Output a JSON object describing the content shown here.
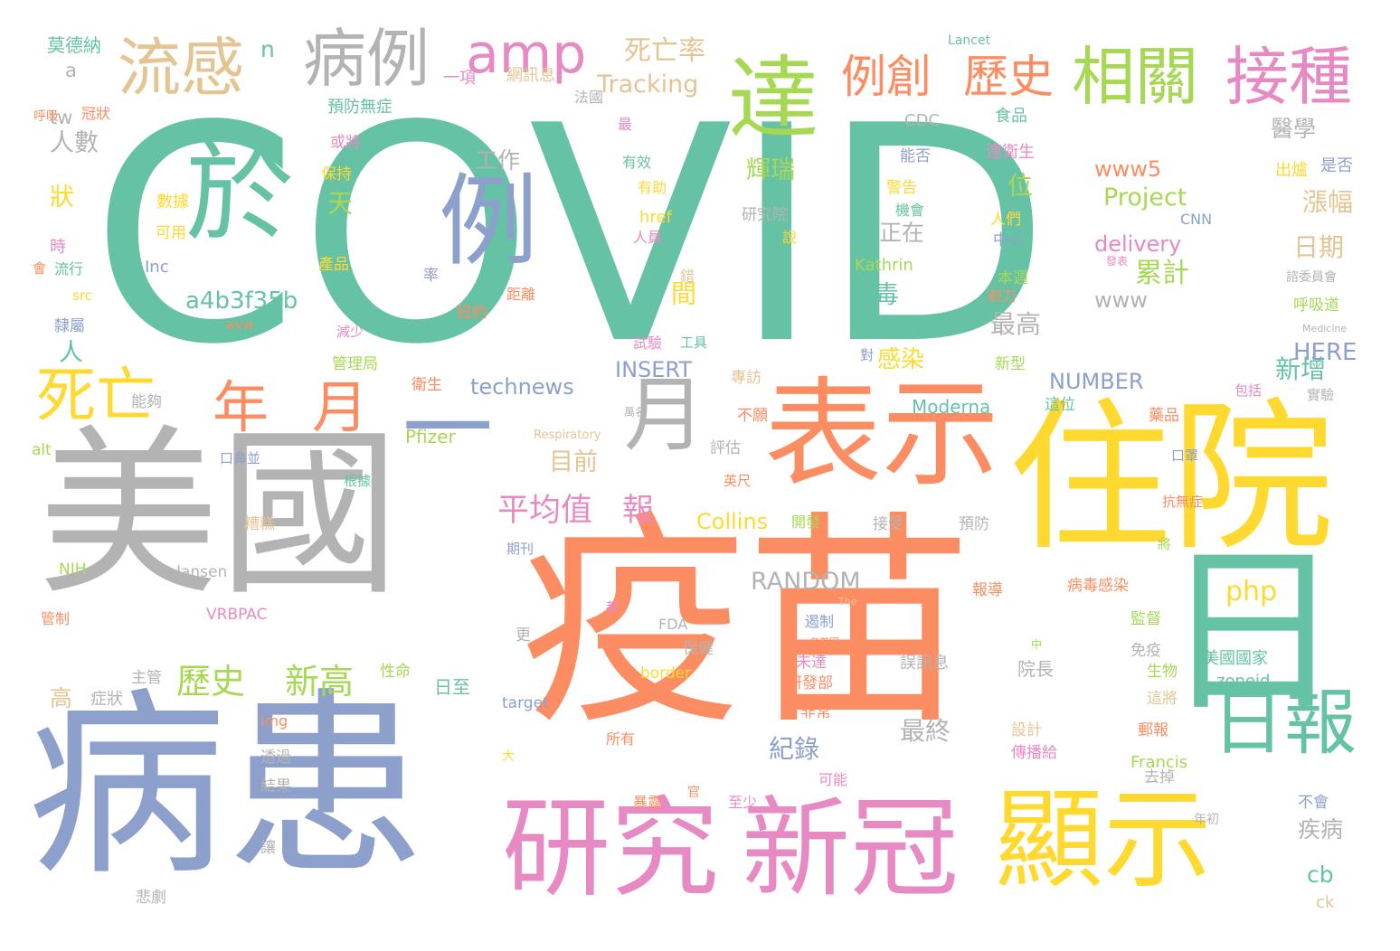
{
  "palette": {
    "teal": "#66c2a5",
    "orange": "#fc8d62",
    "blue": "#8da0cb",
    "pink": "#e78ac3",
    "green": "#a6d854",
    "yellow": "#ffd92f",
    "tan": "#e5c494",
    "gray": "#b3b3b3"
  },
  "words": [
    {
      "t": "COVID",
      "c": "teal"
    },
    {
      "t": "疫苗",
      "c": "orange"
    },
    {
      "t": "美國",
      "c": "gray"
    },
    {
      "t": "病患",
      "c": "blue"
    },
    {
      "t": "住院",
      "c": "yellow"
    },
    {
      "t": "表示",
      "c": "orange"
    },
    {
      "t": "研究",
      "c": "pink"
    },
    {
      "t": "新冠",
      "c": "pink"
    },
    {
      "t": "顯示",
      "c": "yellow"
    },
    {
      "t": "日",
      "c": "teal"
    },
    {
      "t": "於",
      "c": "teal"
    },
    {
      "t": "例",
      "c": "blue"
    },
    {
      "t": "達",
      "c": "green"
    },
    {
      "t": "一",
      "c": "blue"
    },
    {
      "t": "月",
      "c": "gray"
    },
    {
      "t": "日報",
      "c": "teal"
    },
    {
      "t": "病例",
      "c": "gray"
    },
    {
      "t": "流感",
      "c": "tan"
    },
    {
      "t": "amp",
      "c": "pink"
    },
    {
      "t": "相關",
      "c": "green"
    },
    {
      "t": "接種",
      "c": "pink"
    },
    {
      "t": "例創",
      "c": "orange"
    },
    {
      "t": "歷史",
      "c": "orange"
    },
    {
      "t": "死亡",
      "c": "yellow"
    },
    {
      "t": "年",
      "c": "orange"
    },
    {
      "t": "月",
      "c": "orange"
    },
    {
      "t": "死亡率",
      "c": "tan"
    },
    {
      "t": "Tracking",
      "c": "tan"
    },
    {
      "t": "平均值",
      "c": "pink"
    },
    {
      "t": "報",
      "c": "pink"
    },
    {
      "t": "歷史",
      "c": "green"
    },
    {
      "t": "新高",
      "c": "green"
    },
    {
      "t": "a4b3f35b",
      "c": "teal"
    },
    {
      "t": "Project",
      "c": "green"
    },
    {
      "t": "delivery",
      "c": "pink"
    },
    {
      "t": "www5",
      "c": "orange"
    },
    {
      "t": "technews",
      "c": "blue"
    },
    {
      "t": "INSERT",
      "c": "blue"
    },
    {
      "t": "NUMBER",
      "c": "blue"
    },
    {
      "t": "RANDOM",
      "c": "gray"
    },
    {
      "t": "Collins",
      "c": "yellow"
    },
    {
      "t": "php",
      "c": "yellow"
    },
    {
      "t": "輝瑞",
      "c": "green"
    },
    {
      "t": "累計",
      "c": "green"
    },
    {
      "t": "日期",
      "c": "tan"
    },
    {
      "t": "漲幅",
      "c": "tan"
    },
    {
      "t": "醫學",
      "c": "gray"
    },
    {
      "t": "新增",
      "c": "teal"
    },
    {
      "t": "HERE",
      "c": "blue"
    },
    {
      "t": "www",
      "c": "gray"
    },
    {
      "t": "最高",
      "c": "gray"
    },
    {
      "t": "病毒",
      "c": "teal"
    },
    {
      "t": "感染",
      "c": "yellow"
    },
    {
      "t": "正在",
      "c": "gray"
    },
    {
      "t": "位",
      "c": "green"
    },
    {
      "t": "天",
      "c": "green"
    },
    {
      "t": "間",
      "c": "yellow"
    },
    {
      "t": "目前",
      "c": "tan"
    },
    {
      "t": "紀錄",
      "c": "blue"
    },
    {
      "t": "Moderna",
      "c": "teal"
    },
    {
      "t": "Pfizer",
      "c": "green"
    },
    {
      "t": "最終",
      "c": "gray"
    },
    {
      "t": "誤訊息",
      "c": "gray"
    },
    {
      "t": "院長",
      "c": "gray"
    },
    {
      "t": "疾病",
      "c": "gray"
    },
    {
      "t": "cb",
      "c": "teal"
    },
    {
      "t": "ck",
      "c": "tan"
    },
    {
      "t": "Francis",
      "c": "green"
    },
    {
      "t": "zoneid",
      "c": "teal"
    },
    {
      "t": "美國國家",
      "c": "teal"
    },
    {
      "t": "人數",
      "c": "gray"
    },
    {
      "t": "狀",
      "c": "yellow"
    },
    {
      "t": "tw",
      "c": "gray"
    },
    {
      "t": "a",
      "c": "gray"
    },
    {
      "t": "n",
      "c": "teal"
    },
    {
      "t": "莫德納",
      "c": "teal"
    },
    {
      "t": "人",
      "c": "teal"
    },
    {
      "t": "工作",
      "c": "gray"
    },
    {
      "t": "預防無症",
      "c": "teal"
    },
    {
      "t": "一項",
      "c": "pink"
    },
    {
      "t": "網訊息",
      "c": "tan"
    },
    {
      "t": "法國",
      "c": "gray"
    },
    {
      "t": "Lancet",
      "c": "teal"
    },
    {
      "t": "CDC",
      "c": "gray"
    },
    {
      "t": "食品",
      "c": "teal"
    },
    {
      "t": "連衛生",
      "c": "pink"
    },
    {
      "t": "是否",
      "c": "blue"
    },
    {
      "t": "出爐",
      "c": "yellow"
    },
    {
      "t": "CNN",
      "c": "blue"
    },
    {
      "t": "研究院",
      "c": "gray"
    },
    {
      "t": "href",
      "c": "yellow"
    },
    {
      "t": "Kathrin",
      "c": "green"
    },
    {
      "t": "blank",
      "c": "teal"
    },
    {
      "t": "Inc",
      "c": "blue"
    },
    {
      "t": "src",
      "c": "yellow"
    },
    {
      "t": "avw",
      "c": "orange"
    },
    {
      "t": "alt",
      "c": "green"
    },
    {
      "t": "NIH",
      "c": "green"
    },
    {
      "t": "Jansen",
      "c": "gray"
    },
    {
      "t": "VRBPAC",
      "c": "pink"
    },
    {
      "t": "FDA",
      "c": "gray"
    },
    {
      "t": "target",
      "c": "blue"
    },
    {
      "t": "img",
      "c": "orange"
    },
    {
      "t": "border",
      "c": "yellow"
    },
    {
      "t": "Respiratory",
      "c": "tan"
    },
    {
      "t": "Medicine",
      "c": "gray"
    },
    {
      "t": "The",
      "c": "tan"
    },
    {
      "t": "數據",
      "c": "yellow"
    },
    {
      "t": "可用",
      "c": "yellow"
    },
    {
      "t": "保持",
      "c": "yellow"
    },
    {
      "t": "產品",
      "c": "yellow"
    },
    {
      "t": "或將",
      "c": "pink"
    },
    {
      "t": "有效",
      "c": "teal"
    },
    {
      "t": "有助",
      "c": "yellow"
    },
    {
      "t": "人員",
      "c": "pink"
    },
    {
      "t": "說",
      "c": "yellow"
    },
    {
      "t": "最",
      "c": "pink"
    },
    {
      "t": "能否",
      "c": "blue"
    },
    {
      "t": "警告",
      "c": "yellow"
    },
    {
      "t": "機會",
      "c": "teal"
    },
    {
      "t": "人們",
      "c": "yellow"
    },
    {
      "t": "中心",
      "c": "blue"
    },
    {
      "t": "本週",
      "c": "green"
    },
    {
      "t": "剃刀",
      "c": "orange"
    },
    {
      "t": "發表",
      "c": "pink"
    },
    {
      "t": "諮委員會",
      "c": "gray"
    },
    {
      "t": "呼吸道",
      "c": "green"
    },
    {
      "t": "呼吸",
      "c": "orange"
    },
    {
      "t": "冠狀",
      "c": "orange"
    },
    {
      "t": "時",
      "c": "pink"
    },
    {
      "t": "會",
      "c": "orange"
    },
    {
      "t": "流行",
      "c": "teal"
    },
    {
      "t": "對",
      "c": "blue"
    },
    {
      "t": "隸屬",
      "c": "blue"
    },
    {
      "t": "紐約",
      "c": "orange"
    },
    {
      "t": "距離",
      "c": "orange"
    },
    {
      "t": "錯",
      "c": "tan"
    },
    {
      "t": "率",
      "c": "blue"
    },
    {
      "t": "減少",
      "c": "pink"
    },
    {
      "t": "管理局",
      "c": "green"
    },
    {
      "t": "試驗",
      "c": "pink"
    },
    {
      "t": "工具",
      "c": "teal"
    },
    {
      "t": "新型",
      "c": "green"
    },
    {
      "t": "衛生",
      "c": "orange"
    },
    {
      "t": "專訪",
      "c": "tan"
    },
    {
      "t": "不願",
      "c": "orange"
    },
    {
      "t": "萬名",
      "c": "gray"
    },
    {
      "t": "包括",
      "c": "pink"
    },
    {
      "t": "實驗",
      "c": "gray"
    },
    {
      "t": "這位",
      "c": "teal"
    },
    {
      "t": "藥品",
      "c": "orange"
    },
    {
      "t": "能夠",
      "c": "gray"
    },
    {
      "t": "評估",
      "c": "gray"
    },
    {
      "t": "口鼻並",
      "c": "blue"
    },
    {
      "t": "根據",
      "c": "teal"
    },
    {
      "t": "英尺",
      "c": "orange"
    },
    {
      "t": "口罩",
      "c": "blue"
    },
    {
      "t": "抗無症",
      "c": "orange"
    },
    {
      "t": "糟糕",
      "c": "tan"
    },
    {
      "t": "開發",
      "c": "green"
    },
    {
      "t": "接受",
      "c": "gray"
    },
    {
      "t": "預防",
      "c": "gray"
    },
    {
      "t": "將",
      "c": "green"
    },
    {
      "t": "期刊",
      "c": "blue"
    },
    {
      "t": "管制",
      "c": "orange"
    },
    {
      "t": "報導",
      "c": "orange"
    },
    {
      "t": "病毒感染",
      "c": "orange"
    },
    {
      "t": "監督",
      "c": "green"
    },
    {
      "t": "更",
      "c": "gray"
    },
    {
      "t": "保健",
      "c": "gray"
    },
    {
      "t": "都",
      "c": "pink"
    },
    {
      "t": "遏制",
      "c": "blue"
    },
    {
      "t": "免疫",
      "c": "gray"
    },
    {
      "t": "生物",
      "c": "green"
    },
    {
      "t": "這將",
      "c": "tan"
    },
    {
      "t": "主管",
      "c": "gray"
    },
    {
      "t": "性命",
      "c": "green"
    },
    {
      "t": "日至",
      "c": "teal"
    },
    {
      "t": "高",
      "c": "tan"
    },
    {
      "t": "症狀",
      "c": "gray"
    },
    {
      "t": "研發部",
      "c": "orange"
    },
    {
      "t": "非常",
      "c": "orange"
    },
    {
      "t": "未達",
      "c": "pink"
    },
    {
      "t": "設計",
      "c": "tan"
    },
    {
      "t": "傳播給",
      "c": "pink"
    },
    {
      "t": "郵報",
      "c": "orange"
    },
    {
      "t": "去掉",
      "c": "gray"
    },
    {
      "t": "大",
      "c": "yellow"
    },
    {
      "t": "所有",
      "c": "orange"
    },
    {
      "t": "透過",
      "c": "gray"
    },
    {
      "t": "結果",
      "c": "gray"
    },
    {
      "t": "可能",
      "c": "pink"
    },
    {
      "t": "暴露",
      "c": "orange"
    },
    {
      "t": "至少",
      "c": "pink"
    },
    {
      "t": "官",
      "c": "orange"
    },
    {
      "t": "不會",
      "c": "blue"
    },
    {
      "t": "年初",
      "c": "gray"
    },
    {
      "t": "讓",
      "c": "gray"
    },
    {
      "t": "悲劇",
      "c": "gray"
    },
    {
      "t": "中",
      "c": "green"
    },
    {
      "t": "名美國",
      "c": "orange"
    }
  ]
}
